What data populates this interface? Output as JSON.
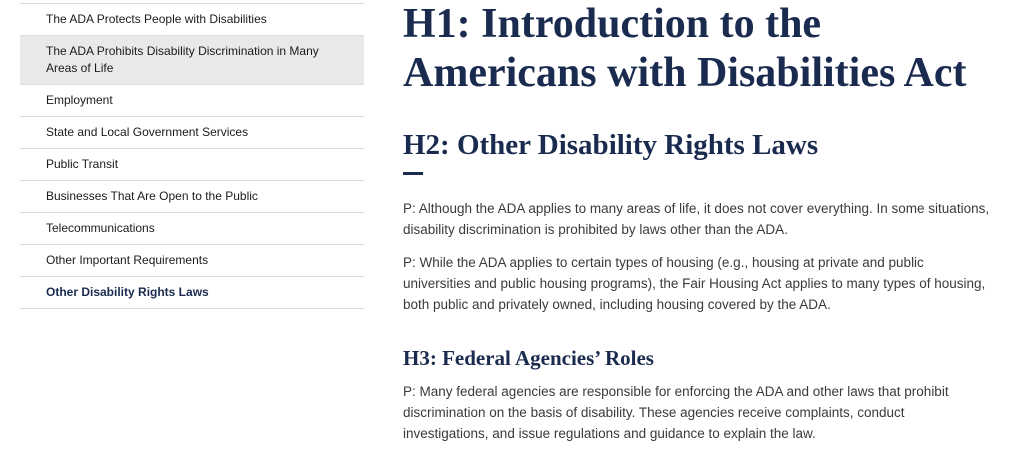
{
  "nav": {
    "items": [
      "The ADA Protects People with Disabilities",
      "The ADA Prohibits Disability Discrimination in Many Areas of Life",
      "Employment",
      "State and Local Government Services",
      "Public Transit",
      "Businesses That Are Open to the Public",
      "Telecommunications",
      "Other Important Requirements",
      "Other Disability Rights Laws"
    ]
  },
  "content": {
    "h1": "H1: Introduction to the Americans with Disabilities Act",
    "h2": "H2: Other Disability Rights Laws",
    "h2_paragraphs": [
      "P: Although the ADA applies to many areas of life, it does not cover everything. In some situations, disability discrimination is prohibited by laws other than the ADA.",
      "P: While the ADA applies to certain types of housing (e.g., housing at private and public universities and public housing programs), the Fair Housing Act applies to many types of housing, both public and privately owned, including housing covered by the ADA."
    ],
    "h3": "H3: Federal Agencies’ Roles",
    "h3_paragraphs": [
      "P: Many federal agencies are responsible for enforcing the ADA and other laws that prohibit discrimination on the basis of disability. These agencies receive complaints, conduct investigations, and issue regulations and guidance to explain the law."
    ]
  }
}
